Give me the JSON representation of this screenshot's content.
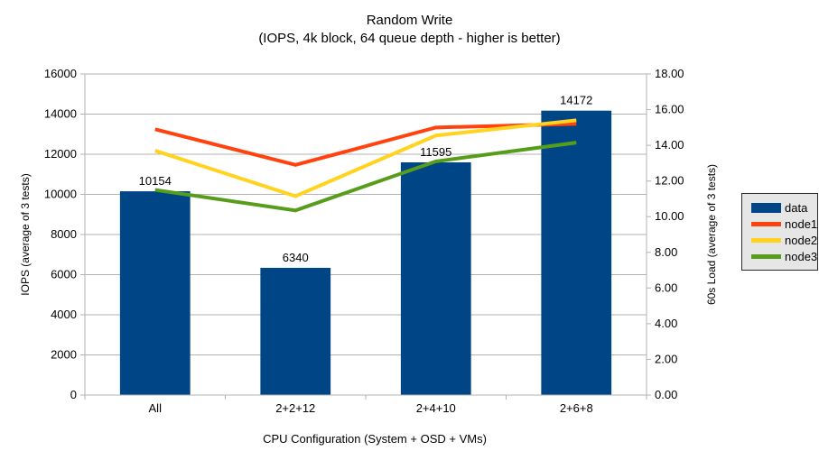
{
  "chart_data": {
    "type": "bar+line",
    "title": "Random Write",
    "subtitle": "(IOPS, 4k block, 64 queue depth - higher is better)",
    "categories": [
      "All",
      "2+2+12",
      "2+4+10",
      "2+6+8"
    ],
    "bar_series": {
      "name": "data",
      "axis": "left",
      "values": [
        10154,
        6340,
        11595,
        14172
      ],
      "labels": [
        "10154",
        "6340",
        "11595",
        "14172"
      ],
      "color": "#004586"
    },
    "line_series": [
      {
        "name": "node1",
        "axis": "right",
        "values": [
          14.9,
          12.9,
          15.0,
          15.2
        ],
        "color": "#ff420e"
      },
      {
        "name": "node2",
        "axis": "right",
        "values": [
          13.7,
          11.15,
          14.55,
          15.4
        ],
        "color": "#ffd320"
      },
      {
        "name": "node3",
        "axis": "right",
        "values": [
          11.5,
          10.35,
          13.1,
          14.15
        ],
        "color": "#579d1c"
      }
    ],
    "left_axis": {
      "label": "IOPS (average of 3 tests)",
      "min": 0,
      "max": 16000,
      "step": 2000,
      "decimals": 0
    },
    "right_axis": {
      "label": "60s Load (average of 3 tests)",
      "min": 0,
      "max": 18,
      "step": 2,
      "decimals": 2
    },
    "x_axis": {
      "label": "CPU Configuration (System + OSD + VMs)"
    },
    "legend": {
      "position": "right",
      "entries": [
        "data",
        "node1",
        "node2",
        "node3"
      ]
    },
    "grid": true,
    "bar_labels": true,
    "colors": {
      "grid_line": "#b3b3b3",
      "axis_line": "#b3b3b3",
      "text": "#000000",
      "legend_bg": "#e6e6e6",
      "legend_border": "#2b2b2b"
    }
  }
}
